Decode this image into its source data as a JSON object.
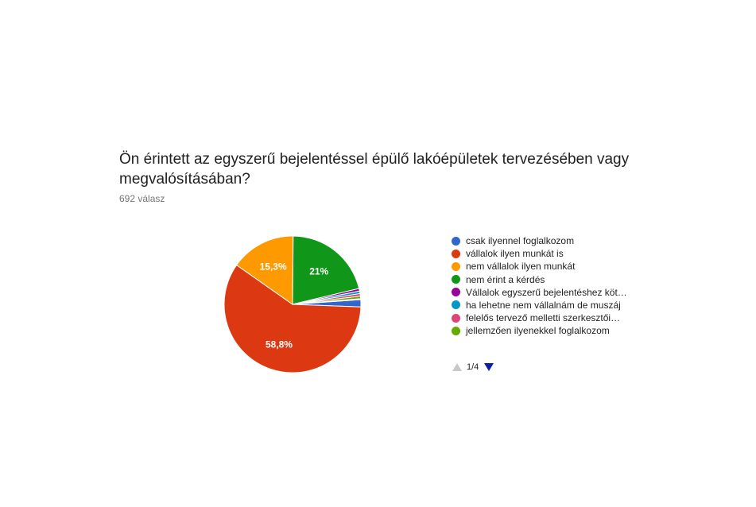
{
  "question": {
    "title": "Ön érintett az egyszerű bejelentéssel épülő lakóépületek tervezésében vagy megvalósításában?",
    "response_count": "692 válasz"
  },
  "chart_data": {
    "type": "pie",
    "slices": [
      {
        "name": "csak ilyennel foglalkozom",
        "value": 1.7,
        "color": "#3366cc",
        "label": ""
      },
      {
        "name": "vállalok ilyen munkát is",
        "value": 58.8,
        "color": "#dc3912",
        "label": "58,8%"
      },
      {
        "name": "nem vállalok ilyen munkát",
        "value": 15.3,
        "color": "#ff9900",
        "label": "15,3%"
      },
      {
        "name": "nem érint a kérdés",
        "value": 21,
        "color": "#109618",
        "label": "21%"
      },
      {
        "name": "Vállalok egyszerű bejelentéshez köt…",
        "value": 0.6,
        "color": "#990099",
        "label": ""
      },
      {
        "name": "ha lehetne nem vállalnám de muszáj",
        "value": 0.6,
        "color": "#0099c6",
        "label": ""
      },
      {
        "name": "felelős tervező melletti szerkesztői…",
        "value": 0.6,
        "color": "#dd4477",
        "label": ""
      },
      {
        "name": "jellemzően ilyenekkel foglalkozom",
        "value": 0.6,
        "color": "#66aa00",
        "label": ""
      },
      {
        "name": "",
        "value": 0.2,
        "color": "#b82e2e",
        "label": ""
      }
    ],
    "legend_placement": "right"
  },
  "legend": {
    "items": [
      {
        "label": "csak ilyennel foglalkozom",
        "color": "#3366cc"
      },
      {
        "label": "vállalok ilyen munkát is",
        "color": "#dc3912"
      },
      {
        "label": "nem vállalok ilyen munkát",
        "color": "#ff9900"
      },
      {
        "label": "nem érint a kérdés",
        "color": "#109618"
      },
      {
        "label": "Vállalok egyszerű bejelentéshez köt…",
        "color": "#990099"
      },
      {
        "label": "ha lehetne nem vállalnám de muszáj",
        "color": "#0099c6"
      },
      {
        "label": "felelős tervező melletti szerkesztői…",
        "color": "#dd4477"
      },
      {
        "label": "jellemzően ilyenekkel foglalkozom",
        "color": "#66aa00"
      }
    ],
    "page": "1/4"
  }
}
